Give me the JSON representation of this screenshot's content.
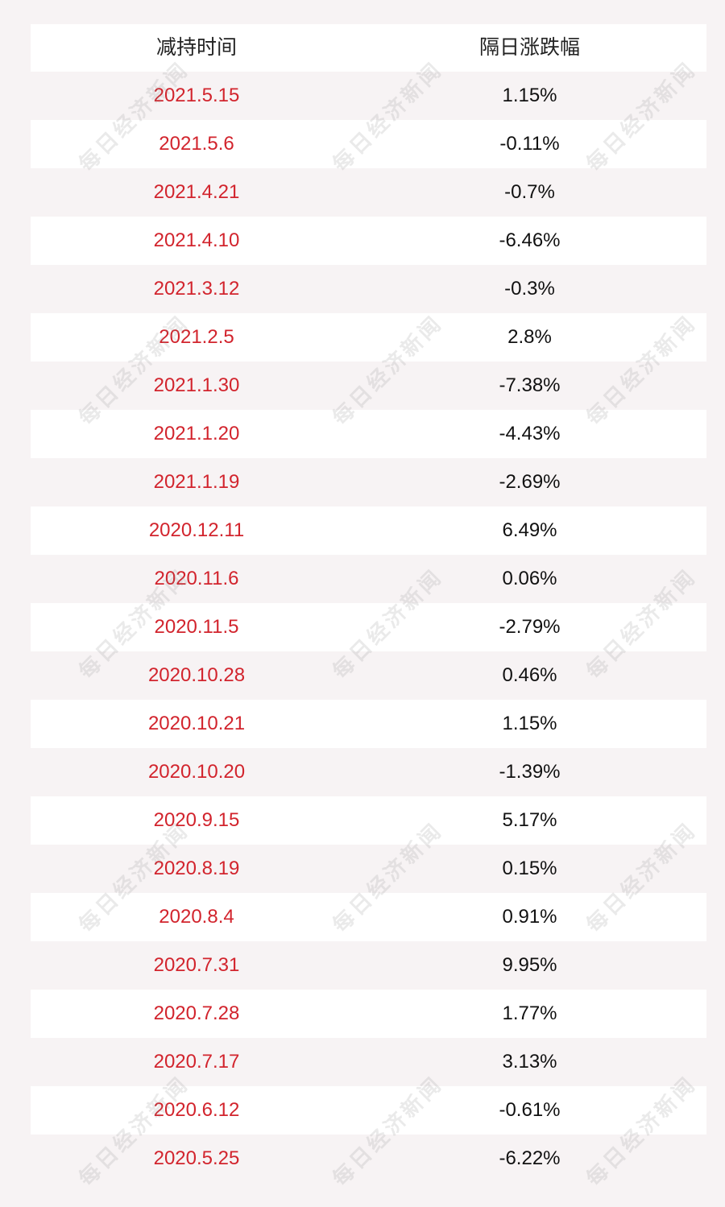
{
  "table": {
    "headers": {
      "date": "减持时间",
      "change": "隔日涨跌幅"
    },
    "rows": [
      {
        "date": "2021.5.15",
        "change": "1.15%"
      },
      {
        "date": "2021.5.6",
        "change": "-0.11%"
      },
      {
        "date": "2021.4.21",
        "change": "-0.7%"
      },
      {
        "date": "2021.4.10",
        "change": "-6.46%"
      },
      {
        "date": "2021.3.12",
        "change": "-0.3%"
      },
      {
        "date": "2021.2.5",
        "change": "2.8%"
      },
      {
        "date": "2021.1.30",
        "change": "-7.38%"
      },
      {
        "date": "2021.1.20",
        "change": "-4.43%"
      },
      {
        "date": "2021.1.19",
        "change": "-2.69%"
      },
      {
        "date": "2020.12.11",
        "change": "6.49%"
      },
      {
        "date": "2020.11.6",
        "change": "0.06%"
      },
      {
        "date": "2020.11.5",
        "change": "-2.79%"
      },
      {
        "date": "2020.10.28",
        "change": "0.46%"
      },
      {
        "date": "2020.10.21",
        "change": "1.15%"
      },
      {
        "date": "2020.10.20",
        "change": "-1.39%"
      },
      {
        "date": "2020.9.15",
        "change": "5.17%"
      },
      {
        "date": "2020.8.19",
        "change": "0.15%"
      },
      {
        "date": "2020.8.4",
        "change": "0.91%"
      },
      {
        "date": "2020.7.31",
        "change": "9.95%"
      },
      {
        "date": "2020.7.28",
        "change": "1.77%"
      },
      {
        "date": "2020.7.17",
        "change": "3.13%"
      },
      {
        "date": "2020.6.12",
        "change": "-0.61%"
      },
      {
        "date": "2020.5.25",
        "change": "-6.22%"
      }
    ]
  },
  "watermark": {
    "text": "每日经济新闻"
  },
  "colors": {
    "date_text": "#d2242d",
    "value_text": "#111111",
    "row_white": "#ffffff",
    "row_tint": "#f7f3f4"
  }
}
